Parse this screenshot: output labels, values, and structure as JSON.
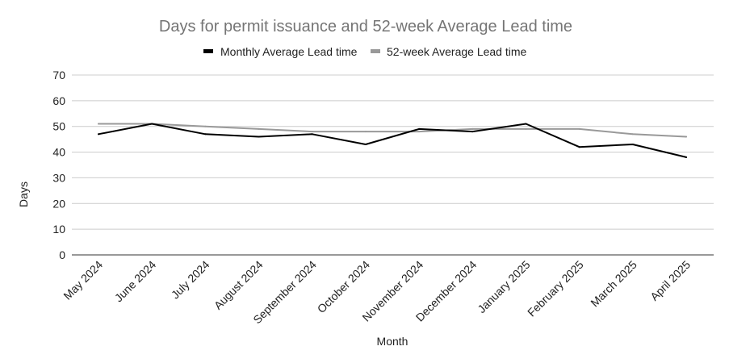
{
  "chart_data": {
    "type": "line",
    "title": "Days for permit issuance and 52-week Average Lead time",
    "xlabel": "Month",
    "ylabel": "Days",
    "ylim": [
      0,
      70
    ],
    "yticks": [
      0,
      10,
      20,
      30,
      40,
      50,
      60,
      70
    ],
    "grid": true,
    "legend_position": "top",
    "categories": [
      "May 2024",
      "June 2024",
      "July 2024",
      "August 2024",
      "September 2024",
      "October 2024",
      "November 2024",
      "December 2024",
      "January 2025",
      "February 2025",
      "March 2025",
      "April 2025"
    ],
    "series": [
      {
        "name": "Monthly Average Lead time",
        "color": "#000000",
        "values": [
          47,
          51,
          47,
          46,
          47,
          43,
          49,
          48,
          51,
          42,
          43,
          38
        ]
      },
      {
        "name": "52-week Average Lead time",
        "color": "#999999",
        "values": [
          51,
          51,
          50,
          49,
          48,
          48,
          48,
          49,
          49,
          49,
          47,
          46
        ]
      }
    ]
  }
}
